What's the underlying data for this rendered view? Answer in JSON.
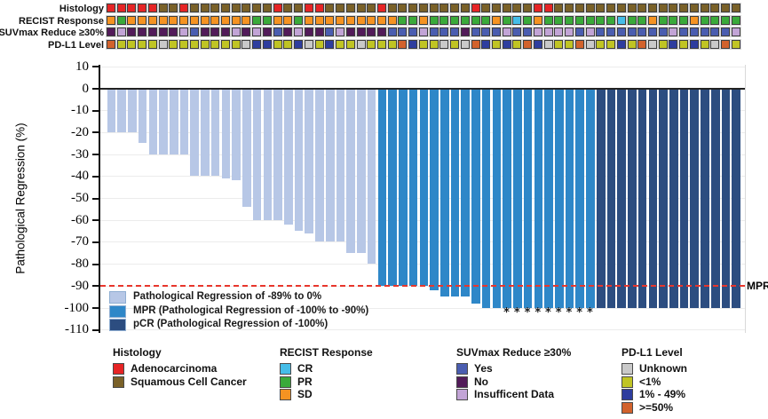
{
  "tracks": {
    "labels": [
      "Histology",
      "RECIST Response",
      "SUVmax Reduce ≥30%",
      "PD-L1 Level"
    ],
    "histology": [
      "A",
      "A",
      "A",
      "A",
      "A",
      "S",
      "S",
      "A",
      "S",
      "S",
      "S",
      "S",
      "S",
      "S",
      "S",
      "S",
      "A",
      "S",
      "S",
      "A",
      "A",
      "S",
      "S",
      "S",
      "S",
      "S",
      "A",
      "S",
      "S",
      "S",
      "S",
      "S",
      "S",
      "S",
      "S",
      "A",
      "S",
      "S",
      "S",
      "S",
      "S",
      "A",
      "A",
      "S",
      "S",
      "S",
      "S",
      "S",
      "S",
      "S",
      "S",
      "S",
      "S",
      "S",
      "S",
      "S",
      "S",
      "S",
      "S",
      "S",
      "S"
    ],
    "recist": [
      "SD",
      "PR",
      "SD",
      "SD",
      "SD",
      "SD",
      "SD",
      "SD",
      "SD",
      "SD",
      "SD",
      "SD",
      "SD",
      "SD",
      "PR",
      "PR",
      "SD",
      "SD",
      "PR",
      "SD",
      "SD",
      "SD",
      "SD",
      "SD",
      "SD",
      "SD",
      "SD",
      "SD",
      "PR",
      "PR",
      "SD",
      "PR",
      "PR",
      "PR",
      "PR",
      "PR",
      "PR",
      "SD",
      "PR",
      "CR",
      "PR",
      "SD",
      "PR",
      "PR",
      "PR",
      "PR",
      "PR",
      "PR",
      "PR",
      "CR",
      "PR",
      "PR",
      "SD",
      "PR",
      "PR",
      "PR",
      "SD",
      "PR",
      "PR",
      "PR",
      "PR"
    ],
    "suvmax": [
      "No",
      "Ins",
      "No",
      "No",
      "No",
      "No",
      "No",
      "Ins",
      "Yes",
      "No",
      "No",
      "No",
      "Ins",
      "No",
      "Ins",
      "No",
      "Yes",
      "No",
      "Ins",
      "No",
      "No",
      "Yes",
      "Ins",
      "No",
      "No",
      "No",
      "No",
      "Yes",
      "Yes",
      "Yes",
      "Ins",
      "Yes",
      "Yes",
      "Yes",
      "No",
      "Yes",
      "Yes",
      "Yes",
      "Ins",
      "Yes",
      "Yes",
      "Ins",
      "Ins",
      "Ins",
      "Ins",
      "Yes",
      "Ins",
      "Yes",
      "Yes",
      "Yes",
      "Yes",
      "Yes",
      "Yes",
      "Yes",
      "Ins",
      "Yes",
      "Yes",
      "Yes",
      "Yes",
      "Yes",
      "Ins"
    ],
    "pdl1": [
      "ge50",
      "lt1",
      "lt1",
      "lt1",
      "lt1",
      "Unk",
      "lt1",
      "lt1",
      "lt1",
      "lt1",
      "lt1",
      "lt1",
      "lt1",
      "Unk",
      "1to49",
      "1to49",
      "lt1",
      "lt1",
      "1to49",
      "Unk",
      "lt1",
      "1to49",
      "lt1",
      "lt1",
      "Unk",
      "lt1",
      "lt1",
      "lt1",
      "ge50",
      "1to49",
      "lt1",
      "lt1",
      "Unk",
      "lt1",
      "Unk",
      "ge50",
      "1to49",
      "lt1",
      "1to49",
      "lt1",
      "ge50",
      "1to49",
      "Unk",
      "lt1",
      "lt1",
      "ge50",
      "Unk",
      "lt1",
      "lt1",
      "1to49",
      "lt1",
      "ge50",
      "Unk",
      "lt1",
      "1to49",
      "lt1",
      "1to49",
      "lt1",
      "Unk",
      "ge50",
      "lt1"
    ]
  },
  "track_colors": {
    "histology": {
      "A": "#e62425",
      "S": "#7a6128"
    },
    "recist": {
      "SD": "#f59322",
      "PR": "#3aaa3a",
      "CR": "#45bde8"
    },
    "suvmax": {
      "Yes": "#4a5db0",
      "No": "#521b59",
      "Ins": "#c2a4d6"
    },
    "pdl1": {
      "Unk": "#c9c9c9",
      "lt1": "#c0c424",
      "1to49": "#2e3d9e",
      "ge50": "#d2622c"
    }
  },
  "chart_data": {
    "type": "bar",
    "title": "",
    "xlabel": "",
    "ylabel": "Pathological Regression (%)",
    "ylim": [
      -110,
      10
    ],
    "yticks": [
      10,
      0,
      -10,
      -20,
      -30,
      -40,
      -50,
      -60,
      -70,
      -80,
      -90,
      -100,
      -110
    ],
    "grid": "horizontal-light",
    "values": [
      -20,
      -20,
      -20,
      -25,
      -30,
      -30,
      -30,
      -30,
      -40,
      -40,
      -40,
      -41,
      -42,
      -54,
      -60,
      -60,
      -60,
      -62,
      -65,
      -66,
      -70,
      -70,
      -70,
      -75,
      -75,
      -80,
      -90,
      -90,
      -90,
      -90,
      -90,
      -92,
      -95,
      -95,
      -95,
      -98,
      -100,
      -100,
      -100,
      -100,
      -100,
      -100,
      -100,
      -100,
      -100,
      -100,
      -100,
      -100,
      -100,
      -100,
      -100,
      -100,
      -100,
      -100,
      -100,
      -100,
      -100,
      -100,
      -100,
      -100,
      -100
    ],
    "groups": [
      "light",
      "light",
      "light",
      "light",
      "light",
      "light",
      "light",
      "light",
      "light",
      "light",
      "light",
      "light",
      "light",
      "light",
      "light",
      "light",
      "light",
      "light",
      "light",
      "light",
      "light",
      "light",
      "light",
      "light",
      "light",
      "light",
      "mpr",
      "mpr",
      "mpr",
      "mpr",
      "mpr",
      "mpr",
      "mpr",
      "mpr",
      "mpr",
      "mpr",
      "mpr",
      "mpr",
      "mpr",
      "mpr",
      "mpr",
      "mpr",
      "mpr",
      "mpr",
      "mpr",
      "mpr",
      "mpr",
      "pcr",
      "pcr",
      "pcr",
      "pcr",
      "pcr",
      "pcr",
      "pcr",
      "pcr",
      "pcr",
      "pcr",
      "pcr",
      "pcr",
      "pcr",
      "pcr"
    ],
    "group_colors": {
      "light": "#b7c7e6",
      "mpr": "#2e87c8",
      "pcr": "#2c4d80"
    },
    "asterisk_indices": [
      38,
      39,
      40,
      41,
      42,
      43,
      44,
      45,
      46
    ],
    "asterisk_symbol": "*",
    "mpr_line": {
      "y": -90,
      "label": "MPR",
      "color": "#e8362c",
      "style": "dashed"
    }
  },
  "chart_legend": [
    {
      "label": "Pathological Regression of -89% to 0%",
      "group": "light"
    },
    {
      "label": "MPR (Pathological Regression of -100% to -90%)",
      "group": "mpr"
    },
    {
      "label": "pCR (Pathological Regression of -100%)",
      "group": "pcr"
    }
  ],
  "bottom_legend": [
    {
      "title": "Histology",
      "items": [
        {
          "label": "Adenocarcinoma",
          "color": "#e62425"
        },
        {
          "label": "Squamous Cell Cancer",
          "color": "#7a6128"
        }
      ]
    },
    {
      "title": "RECIST Response",
      "items": [
        {
          "label": "CR",
          "color": "#45bde8"
        },
        {
          "label": "PR",
          "color": "#3aaa3a"
        },
        {
          "label": "SD",
          "color": "#f59322"
        }
      ]
    },
    {
      "title": "SUVmax Reduce ≥30%",
      "items": [
        {
          "label": "Yes",
          "color": "#4a5db0"
        },
        {
          "label": "No",
          "color": "#521b59"
        },
        {
          "label": "Insufficent Data",
          "color": "#c2a4d6"
        }
      ]
    },
    {
      "title": "PD-L1 Level",
      "items": [
        {
          "label": "Unknown",
          "color": "#c9c9c9"
        },
        {
          "label": "<1%",
          "color": "#c0c424"
        },
        {
          "label": "1% - 49%",
          "color": "#2e3d9e"
        },
        {
          "label": ">=50%",
          "color": "#d2622c"
        }
      ]
    }
  ]
}
